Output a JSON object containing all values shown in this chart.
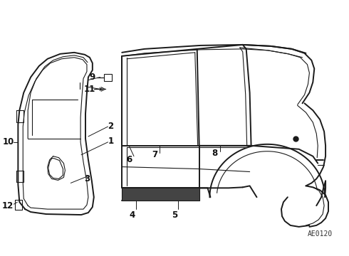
{
  "bg_color": "#ffffff",
  "line_color": "#1a1a1a",
  "diagram_id": "AE0120",
  "figsize": [
    4.9,
    3.6
  ],
  "dpi": 100
}
